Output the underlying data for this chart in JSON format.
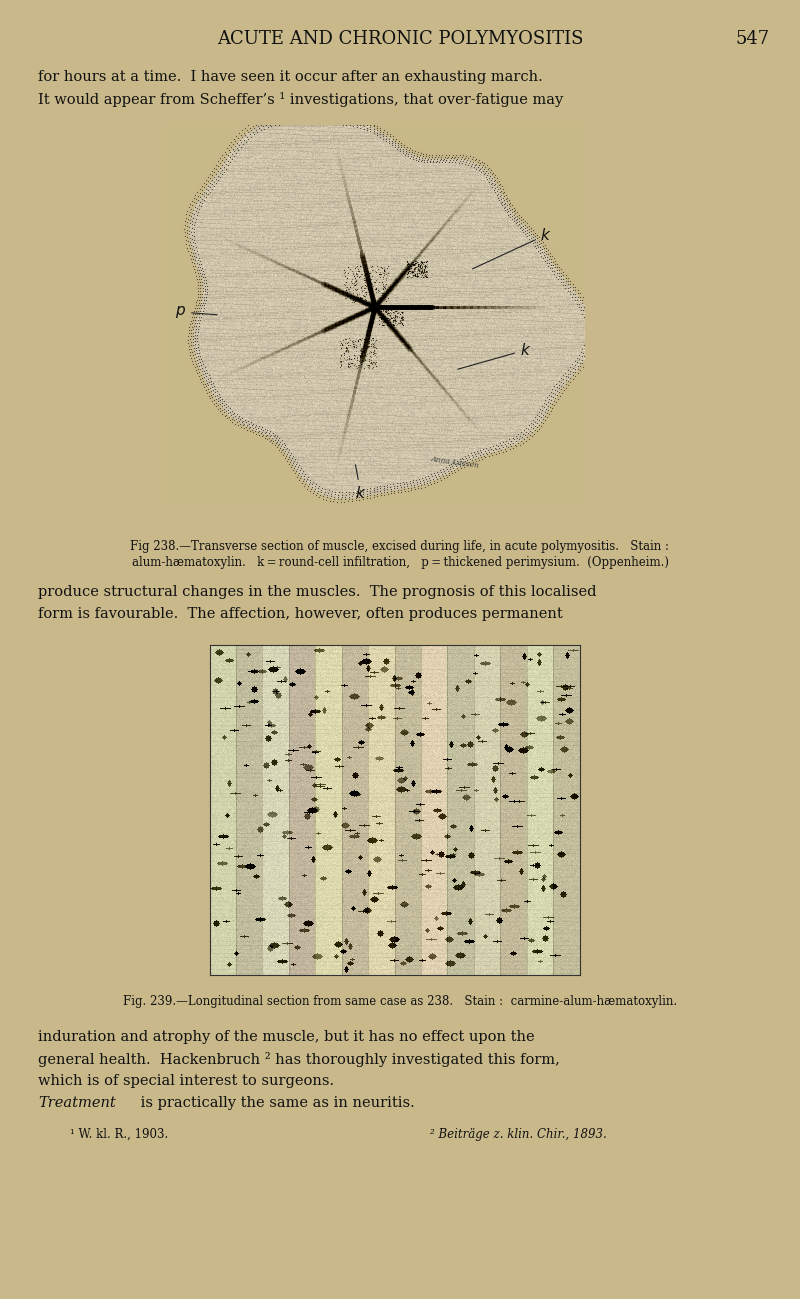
{
  "bg_color": "#c9b98a",
  "page_width": 8.0,
  "page_height": 12.99,
  "dpi": 100,
  "title": "ACUTE AND CHRONIC POLYMYOSITIS",
  "page_number": "547",
  "top_text_lines": [
    "for hours at a time.  I have seen it occur after an exhausting march.",
    "It would appear from Scheffer’s ¹ investigations, that over-fatigue may"
  ],
  "fig238_caption_line1": "Fig 238.—Transverse section of muscle, excised during life, in acute polymyositis.   Stain :",
  "fig238_caption_line2": "alum-hæmatoxylin.   k = round-cell infiltration,   p = thickened perimysium.  (Oppenheim.)",
  "middle_text_lines": [
    "produce structural changes in the muscles.  The prognosis of this localised",
    "form is favourable.  The affection, however, often produces permanent"
  ],
  "fig239_caption": "Fig. 239.—Longitudinal section from same case as 238.   Stain :  carmine-alum-hæmatoxylin.",
  "bottom_text_lines": [
    "induration and atrophy of the muscle, but it has no effect upon the",
    "general health.  Hackenbruch ² has thoroughly investigated this form,",
    "which is of special interest to surgeons.",
    "Treatment is practically the same as in neuritis."
  ],
  "footnote_left": "¹ W. kl. R., 1903.",
  "footnote_right": "² Beiträge z. klin. Chir., 1893."
}
